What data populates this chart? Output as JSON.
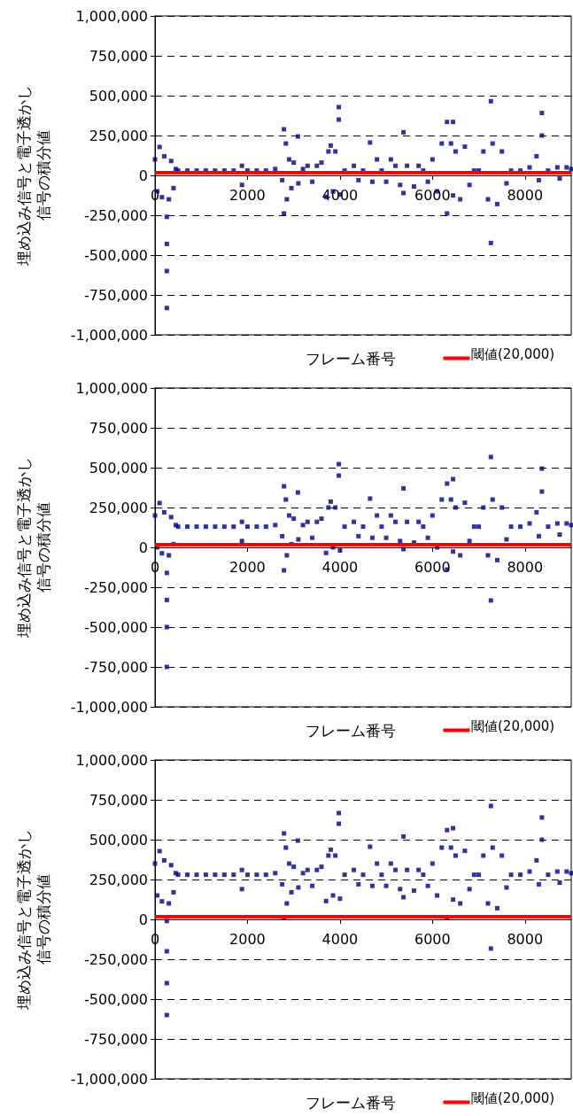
{
  "chart_data": [
    {
      "type": "scatter",
      "ylabel": "埋め込み信号と電子透かし信号の積分値",
      "xlabel": "フレーム番号",
      "marker": "square",
      "grid": "y",
      "xlim": [
        0,
        9000
      ],
      "xticks": [
        0,
        2000,
        4000,
        6000,
        8000
      ],
      "ylim": [
        -1000000,
        1000000
      ],
      "yticks": [
        {
          "value": -1000000,
          "label": "-1,000,000"
        },
        {
          "value": -750000,
          "label": "-750,000"
        },
        {
          "value": -500000,
          "label": "-500,000"
        },
        {
          "value": -250000,
          "label": "-250,000"
        },
        {
          "value": 0,
          "label": "0"
        },
        {
          "value": 250000,
          "label": "250,000"
        },
        {
          "value": 500000,
          "label": "500,000"
        },
        {
          "value": 750000,
          "label": "750,000"
        },
        {
          "value": 1000000,
          "label": "1,000,000"
        }
      ],
      "ref_lines": [
        {
          "axis": "y",
          "value": 20000,
          "label": "閾値(20,000)",
          "color": "#ff0000"
        }
      ],
      "series": [
        {
          "color": "#000080",
          "x": [
            0,
            50,
            100,
            150,
            200,
            256,
            256,
            256,
            256,
            300,
            350,
            400,
            450,
            500,
            700,
            900,
            1100,
            1300,
            1500,
            1700,
            1880,
            1880,
            2000,
            2200,
            2400,
            2600,
            2750,
            2789,
            2789,
            2830,
            2850,
            2900,
            2950,
            3000,
            3090,
            3100,
            3200,
            3300,
            3400,
            3500,
            3600,
            3700,
            3750,
            3800,
            3850,
            3900,
            3975,
            3975,
            4000,
            4100,
            4300,
            4400,
            4500,
            4650,
            4700,
            4800,
            4900,
            5000,
            5100,
            5200,
            5300,
            5373,
            5373,
            5450,
            5600,
            5700,
            5800,
            5900,
            6000,
            6100,
            6200,
            6315,
            6315,
            6400,
            6445,
            6445,
            6500,
            6600,
            6700,
            6800,
            6900,
            7000,
            7100,
            7200,
            7263,
            7263,
            7300,
            7400,
            7500,
            7600,
            7700,
            7900,
            8100,
            8250,
            8300,
            8365,
            8365,
            8500,
            8700,
            8750,
            8900,
            9000
          ],
          "values": [
            100000,
            -100000,
            178000,
            -137000,
            120000,
            -260000,
            -430000,
            -600000,
            -832000,
            -150000,
            90000,
            -80000,
            40000,
            30000,
            30000,
            30000,
            30000,
            30000,
            30000,
            30000,
            60000,
            -60000,
            30000,
            30000,
            30000,
            40000,
            -30000,
            289000,
            -239000,
            200000,
            -150000,
            100000,
            -80000,
            80000,
            244000,
            -50000,
            40000,
            60000,
            -40000,
            60000,
            80000,
            -135000,
            150000,
            187000,
            -100000,
            150000,
            428000,
            350000,
            -120000,
            30000,
            60000,
            -30000,
            30000,
            206000,
            -40000,
            100000,
            30000,
            -40000,
            100000,
            60000,
            -60000,
            270000,
            -111000,
            60000,
            -70000,
            60000,
            30000,
            -40000,
            100000,
            -100000,
            200000,
            335000,
            -239000,
            200000,
            335000,
            -126000,
            150000,
            -150000,
            180000,
            -60000,
            30000,
            30000,
            150000,
            -150000,
            465000,
            -424000,
            200000,
            -180000,
            150000,
            -50000,
            30000,
            30000,
            50000,
            120000,
            -30000,
            391000,
            250000,
            30000,
            50000,
            -20000,
            50000,
            40000
          ]
        }
      ]
    },
    {
      "type": "scatter",
      "ylabel": "埋め込み信号と電子透かし信号の積分値",
      "xlabel": "フレーム番号",
      "marker": "square",
      "grid": "y",
      "xlim": [
        0,
        9000
      ],
      "xticks": [
        0,
        2000,
        4000,
        6000,
        8000
      ],
      "ylim": [
        -1000000,
        1000000
      ],
      "yticks": [
        {
          "value": -1000000,
          "label": "-1,000,000"
        },
        {
          "value": -750000,
          "label": "-750,000"
        },
        {
          "value": -500000,
          "label": "-500,000"
        },
        {
          "value": -250000,
          "label": "-250,000"
        },
        {
          "value": 0,
          "label": "0"
        },
        {
          "value": 250000,
          "label": "250,000"
        },
        {
          "value": 500000,
          "label": "500,000"
        },
        {
          "value": 750000,
          "label": "750,000"
        },
        {
          "value": 1000000,
          "label": "1,000,000"
        }
      ],
      "ref_lines": [
        {
          "axis": "y",
          "value": 20000,
          "label": "閾値(20,000)",
          "color": "#ff0000"
        }
      ],
      "series": [
        {
          "color": "#000080",
          "x": [
            0,
            50,
            100,
            150,
            200,
            256,
            256,
            256,
            256,
            300,
            350,
            400,
            450,
            500,
            700,
            900,
            1100,
            1300,
            1500,
            1700,
            1880,
            1880,
            2000,
            2200,
            2400,
            2600,
            2750,
            2789,
            2789,
            2830,
            2850,
            2900,
            2950,
            3000,
            3090,
            3100,
            3200,
            3300,
            3400,
            3500,
            3600,
            3700,
            3750,
            3800,
            3850,
            3900,
            3975,
            3975,
            4000,
            4100,
            4300,
            4400,
            4500,
            4650,
            4700,
            4800,
            4900,
            5000,
            5100,
            5200,
            5300,
            5373,
            5373,
            5450,
            5600,
            5700,
            5800,
            5900,
            6000,
            6100,
            6200,
            6315,
            6315,
            6400,
            6445,
            6445,
            6500,
            6600,
            6700,
            6800,
            6900,
            7000,
            7100,
            7200,
            7263,
            7263,
            7300,
            7400,
            7500,
            7600,
            7700,
            7900,
            8100,
            8250,
            8300,
            8365,
            8365,
            8500,
            8700,
            8750,
            8900,
            9000
          ],
          "values": [
            200000,
            0,
            278000,
            -37000,
            220000,
            -160000,
            -330000,
            -500000,
            -750000,
            -50000,
            190000,
            20000,
            140000,
            130000,
            130000,
            130000,
            130000,
            130000,
            130000,
            130000,
            160000,
            40000,
            130000,
            130000,
            130000,
            140000,
            70000,
            383000,
            -144000,
            300000,
            -50000,
            200000,
            20000,
            180000,
            344000,
            50000,
            140000,
            160000,
            60000,
            160000,
            180000,
            -35000,
            250000,
            287000,
            0,
            250000,
            522000,
            450000,
            -20000,
            130000,
            160000,
            70000,
            130000,
            306000,
            60000,
            200000,
            130000,
            60000,
            200000,
            160000,
            40000,
            370000,
            -11000,
            160000,
            30000,
            160000,
            130000,
            60000,
            200000,
            0,
            300000,
            400000,
            -139000,
            300000,
            428000,
            -26000,
            250000,
            -50000,
            280000,
            40000,
            130000,
            130000,
            250000,
            -50000,
            567000,
            -333000,
            300000,
            -80000,
            250000,
            50000,
            130000,
            130000,
            150000,
            220000,
            70000,
            494000,
            350000,
            130000,
            150000,
            80000,
            150000,
            140000
          ]
        }
      ]
    },
    {
      "type": "scatter",
      "ylabel": "埋め込み信号と電子透かし信号の積分値",
      "xlabel": "フレーム番号",
      "marker": "square",
      "grid": "y",
      "xlim": [
        0,
        9000
      ],
      "xticks": [
        0,
        2000,
        4000,
        6000,
        8000
      ],
      "ylim": [
        -1000000,
        1000000
      ],
      "yticks": [
        {
          "value": -1000000,
          "label": "-1,000,000"
        },
        {
          "value": -750000,
          "label": "-750,000"
        },
        {
          "value": -500000,
          "label": "-500,000"
        },
        {
          "value": -250000,
          "label": "-250,000"
        },
        {
          "value": 0,
          "label": "0"
        },
        {
          "value": 250000,
          "label": "250,000"
        },
        {
          "value": 500000,
          "label": "500,000"
        },
        {
          "value": 750000,
          "label": "750,000"
        },
        {
          "value": 1000000,
          "label": "1,000,000"
        }
      ],
      "ref_lines": [
        {
          "axis": "y",
          "value": 20000,
          "label": "閾値(20,000)",
          "color": "#ff0000"
        }
      ],
      "series": [
        {
          "color": "#000080",
          "x": [
            0,
            50,
            100,
            150,
            200,
            256,
            256,
            256,
            256,
            300,
            350,
            400,
            450,
            500,
            700,
            900,
            1100,
            1300,
            1500,
            1700,
            1880,
            1880,
            2000,
            2200,
            2400,
            2600,
            2750,
            2789,
            2789,
            2830,
            2850,
            2900,
            2950,
            3000,
            3090,
            3100,
            3200,
            3300,
            3400,
            3500,
            3600,
            3700,
            3750,
            3800,
            3850,
            3900,
            3975,
            3975,
            4000,
            4100,
            4300,
            4400,
            4500,
            4650,
            4700,
            4800,
            4900,
            5000,
            5100,
            5200,
            5300,
            5373,
            5373,
            5450,
            5600,
            5700,
            5800,
            5900,
            6000,
            6100,
            6200,
            6315,
            6315,
            6400,
            6445,
            6445,
            6500,
            6600,
            6700,
            6800,
            6900,
            7000,
            7100,
            7200,
            7263,
            7263,
            7300,
            7400,
            7500,
            7600,
            7700,
            7900,
            8100,
            8250,
            8300,
            8365,
            8365,
            8500,
            8700,
            8750,
            8900,
            9000
          ],
          "values": [
            350000,
            150000,
            428000,
            113000,
            370000,
            -10000,
            -200000,
            -400000,
            -600000,
            100000,
            340000,
            170000,
            290000,
            280000,
            280000,
            280000,
            280000,
            280000,
            280000,
            280000,
            310000,
            190000,
            280000,
            280000,
            280000,
            290000,
            220000,
            539000,
            11000,
            450000,
            100000,
            350000,
            170000,
            330000,
            494000,
            200000,
            290000,
            310000,
            210000,
            310000,
            330000,
            115000,
            400000,
            437000,
            150000,
            400000,
            667000,
            600000,
            130000,
            280000,
            310000,
            220000,
            280000,
            456000,
            210000,
            350000,
            280000,
            210000,
            350000,
            310000,
            190000,
            520000,
            139000,
            310000,
            180000,
            310000,
            280000,
            210000,
            350000,
            150000,
            450000,
            560000,
            11000,
            450000,
            572000,
            124000,
            400000,
            100000,
            430000,
            190000,
            280000,
            280000,
            400000,
            100000,
            711000,
            -183000,
            450000,
            70000,
            400000,
            200000,
            280000,
            280000,
            300000,
            370000,
            220000,
            639000,
            500000,
            280000,
            300000,
            230000,
            300000,
            290000
          ]
        }
      ]
    }
  ]
}
